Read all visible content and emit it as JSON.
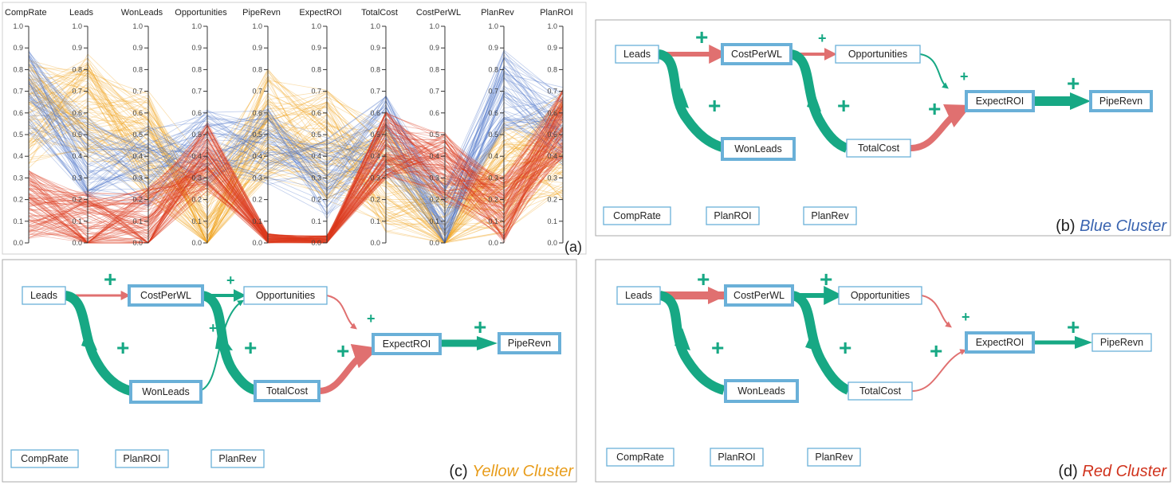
{
  "panel_a": {
    "tag": "(a)",
    "axes": [
      "CompRate",
      "Leads",
      "WonLeads",
      "Opportunities",
      "PipeRevn",
      "ExpectROI",
      "TotalCost",
      "CostPerWL",
      "PlanRev",
      "PlanROI"
    ],
    "ticks": [
      "0.0",
      "0.1",
      "0.2",
      "0.3",
      "0.4",
      "0.5",
      "0.6",
      "0.7",
      "0.8",
      "0.9",
      "1.0"
    ],
    "cluster_colors": {
      "blue": "#4a74c9",
      "yellow": "#f0a41c",
      "red": "#dd3a1e"
    },
    "cluster_profiles": {
      "blue": [
        0.7,
        0.4,
        0.35,
        0.45,
        0.45,
        0.3,
        0.5,
        0.08,
        0.7,
        0.55
      ],
      "yellow": [
        0.6,
        0.62,
        0.45,
        0.12,
        0.55,
        0.45,
        0.3,
        0.05,
        0.3,
        0.45
      ],
      "red": [
        0.18,
        0.08,
        0.1,
        0.4,
        0.02,
        0.01,
        0.45,
        0.35,
        0.15,
        0.55
      ]
    }
  },
  "panel_b": {
    "caption_prefix": "(b) ",
    "caption_name": "Blue Cluster",
    "caption_color": "#3a64b0",
    "nodes": {
      "leads": "Leads",
      "costperwl": "CostPerWL",
      "opportunities": "Opportunities",
      "expectroi": "ExpectROI",
      "piperevn": "PipeRevn",
      "wonleads": "WonLeads",
      "totalcost": "TotalCost",
      "comprate": "CompRate",
      "planroi": "PlanROI",
      "planrev": "PlanRev"
    }
  },
  "panel_c": {
    "caption_prefix": "(c) ",
    "caption_name": "Yellow Cluster",
    "caption_color": "#e89c1a",
    "nodes": {
      "leads": "Leads",
      "costperwl": "CostPerWL",
      "opportunities": "Opportunities",
      "expectroi": "ExpectROI",
      "piperevn": "PipeRevn",
      "wonleads": "WonLeads",
      "totalcost": "TotalCost",
      "comprate": "CompRate",
      "planroi": "PlanROI",
      "planrev": "PlanRev"
    }
  },
  "panel_d": {
    "caption_prefix": "(d) ",
    "caption_name": "Red Cluster",
    "caption_color": "#d0321c",
    "nodes": {
      "leads": "Leads",
      "costperwl": "CostPerWL",
      "opportunities": "Opportunities",
      "expectroi": "ExpectROI",
      "piperevn": "PipeRevn",
      "wonleads": "WonLeads",
      "totalcost": "TotalCost",
      "comprate": "CompRate",
      "planroi": "PlanROI",
      "planrev": "PlanRev"
    }
  },
  "plus_sign": "+",
  "colors": {
    "positive": "#17a884",
    "negative": "#e07070",
    "node_border": "#6ab0d8"
  }
}
